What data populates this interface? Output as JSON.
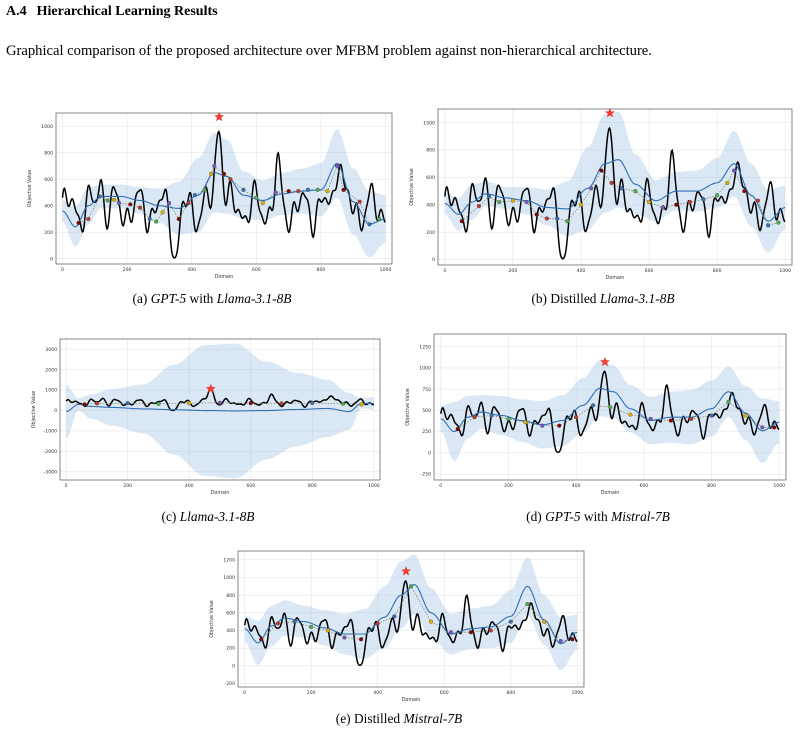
{
  "section": {
    "number": "A.4",
    "title": "Hierarchical Learning Results"
  },
  "intro": "Graphical comparison of the proposed architecture over MFBM problem against non-hierarchical architecture.",
  "chart_data": [
    {
      "type": "line",
      "caption": [
        "(a) ",
        "GPT-5",
        " with ",
        "Llama-3.1-8B"
      ],
      "xlabel": "Domain",
      "ylabel": "Objective Value",
      "xlim": [
        -20,
        1020
      ],
      "ylim": [
        -40,
        1100
      ],
      "xticks": [
        0,
        200,
        400,
        600,
        800,
        1000
      ],
      "yticks": [
        0,
        200,
        400,
        600,
        800,
        1000
      ],
      "grid": true,
      "best": {
        "x": 485,
        "y": 1070
      },
      "gp_mean": [
        [
          0,
          360
        ],
        [
          40,
          240
        ],
        [
          80,
          400
        ],
        [
          120,
          470
        ],
        [
          180,
          470
        ],
        [
          240,
          440
        ],
        [
          300,
          400
        ],
        [
          360,
          380
        ],
        [
          420,
          480
        ],
        [
          470,
          650
        ],
        [
          510,
          620
        ],
        [
          560,
          480
        ],
        [
          620,
          440
        ],
        [
          680,
          490
        ],
        [
          740,
          510
        ],
        [
          800,
          520
        ],
        [
          850,
          720
        ],
        [
          900,
          430
        ],
        [
          950,
          260
        ],
        [
          1000,
          300
        ]
      ],
      "gp_band": [
        [
          0,
          80
        ],
        [
          40,
          150
        ],
        [
          80,
          140
        ],
        [
          120,
          90
        ],
        [
          180,
          90
        ],
        [
          240,
          100
        ],
        [
          300,
          130
        ],
        [
          360,
          200
        ],
        [
          420,
          280
        ],
        [
          470,
          300
        ],
        [
          510,
          280
        ],
        [
          560,
          180
        ],
        [
          620,
          150
        ],
        [
          680,
          160
        ],
        [
          740,
          170
        ],
        [
          800,
          200
        ],
        [
          850,
          260
        ],
        [
          900,
          250
        ],
        [
          950,
          250
        ],
        [
          1000,
          180
        ]
      ],
      "samples": [
        [
          50,
          270
        ],
        [
          80,
          300
        ],
        [
          115,
          470
        ],
        [
          140,
          440
        ],
        [
          160,
          445
        ],
        [
          175,
          420
        ],
        [
          210,
          410
        ],
        [
          240,
          385
        ],
        [
          270,
          300
        ],
        [
          290,
          280
        ],
        [
          310,
          350
        ],
        [
          330,
          420
        ],
        [
          360,
          300
        ],
        [
          390,
          420
        ],
        [
          410,
          480
        ],
        [
          440,
          520
        ],
        [
          460,
          640
        ],
        [
          470,
          700
        ],
        [
          500,
          640
        ],
        [
          520,
          600
        ],
        [
          560,
          520
        ],
        [
          600,
          460
        ],
        [
          620,
          420
        ],
        [
          660,
          500
        ],
        [
          700,
          510
        ],
        [
          730,
          510
        ],
        [
          760,
          520
        ],
        [
          790,
          520
        ],
        [
          820,
          510
        ],
        [
          850,
          700
        ],
        [
          870,
          520
        ],
        [
          920,
          430
        ],
        [
          950,
          260
        ],
        [
          980,
          300
        ]
      ]
    },
    {
      "type": "line",
      "caption": [
        "(b) Distilled ",
        "Llama-3.1-8B"
      ],
      "xlabel": "Domain",
      "ylabel": "Objective Value",
      "xlim": [
        -20,
        1020
      ],
      "ylim": [
        -40,
        1100
      ],
      "xticks": [
        0,
        200,
        400,
        600,
        800,
        1000
      ],
      "yticks": [
        0,
        200,
        400,
        600,
        800,
        1000
      ],
      "grid": true,
      "best": {
        "x": 485,
        "y": 1070
      },
      "gp_mean": [
        [
          0,
          410
        ],
        [
          40,
          330
        ],
        [
          80,
          420
        ],
        [
          120,
          480
        ],
        [
          180,
          450
        ],
        [
          240,
          430
        ],
        [
          300,
          380
        ],
        [
          360,
          370
        ],
        [
          420,
          520
        ],
        [
          470,
          700
        ],
        [
          510,
          730
        ],
        [
          560,
          550
        ],
        [
          620,
          430
        ],
        [
          680,
          500
        ],
        [
          740,
          500
        ],
        [
          800,
          560
        ],
        [
          850,
          700
        ],
        [
          900,
          470
        ],
        [
          950,
          280
        ],
        [
          1000,
          380
        ]
      ],
      "gp_band": [
        [
          0,
          80
        ],
        [
          40,
          120
        ],
        [
          80,
          130
        ],
        [
          120,
          90
        ],
        [
          180,
          80
        ],
        [
          240,
          100
        ],
        [
          300,
          130
        ],
        [
          360,
          200
        ],
        [
          420,
          300
        ],
        [
          470,
          360
        ],
        [
          510,
          350
        ],
        [
          560,
          220
        ],
        [
          620,
          150
        ],
        [
          680,
          140
        ],
        [
          740,
          150
        ],
        [
          800,
          180
        ],
        [
          850,
          240
        ],
        [
          900,
          230
        ],
        [
          950,
          230
        ],
        [
          1000,
          160
        ]
      ],
      "samples": [
        [
          50,
          280
        ],
        [
          100,
          390
        ],
        [
          130,
          460
        ],
        [
          160,
          420
        ],
        [
          200,
          430
        ],
        [
          240,
          420
        ],
        [
          270,
          330
        ],
        [
          300,
          300
        ],
        [
          330,
          300
        ],
        [
          360,
          280
        ],
        [
          400,
          400
        ],
        [
          430,
          520
        ],
        [
          460,
          650
        ],
        [
          490,
          560
        ],
        [
          520,
          520
        ],
        [
          560,
          500
        ],
        [
          600,
          420
        ],
        [
          640,
          380
        ],
        [
          680,
          400
        ],
        [
          720,
          420
        ],
        [
          760,
          440
        ],
        [
          800,
          470
        ],
        [
          830,
          560
        ],
        [
          850,
          650
        ],
        [
          880,
          500
        ],
        [
          920,
          430
        ],
        [
          950,
          250
        ],
        [
          980,
          270
        ]
      ]
    },
    {
      "type": "line",
      "caption": [
        "(c) ",
        "Llama-3.1-8B"
      ],
      "xlabel": "Domain",
      "ylabel": "Objective Value",
      "xlim": [
        -20,
        1020
      ],
      "ylim": [
        -3400,
        3500
      ],
      "xticks": [
        0,
        200,
        400,
        600,
        800,
        1000
      ],
      "yticks": [
        -3000,
        -2000,
        -1000,
        0,
        1000,
        2000,
        3000
      ],
      "grid": true,
      "best": {
        "x": 470,
        "y": 1060
      },
      "gp_mean": [
        [
          0,
          -50
        ],
        [
          40,
          300
        ],
        [
          80,
          200
        ],
        [
          150,
          150
        ],
        [
          250,
          80
        ],
        [
          350,
          40
        ],
        [
          450,
          0
        ],
        [
          550,
          -20
        ],
        [
          650,
          0
        ],
        [
          750,
          50
        ],
        [
          850,
          100
        ],
        [
          920,
          -50
        ],
        [
          960,
          350
        ],
        [
          1000,
          350
        ]
      ],
      "gp_band": [
        [
          0,
          1300
        ],
        [
          40,
          300
        ],
        [
          80,
          600
        ],
        [
          150,
          900
        ],
        [
          250,
          1200
        ],
        [
          350,
          2200
        ],
        [
          450,
          3200
        ],
        [
          550,
          3300
        ],
        [
          650,
          2400
        ],
        [
          750,
          1800
        ],
        [
          850,
          1400
        ],
        [
          920,
          900
        ],
        [
          960,
          250
        ],
        [
          1000,
          300
        ]
      ],
      "samples": [
        [
          60,
          300
        ],
        [
          100,
          350
        ],
        [
          200,
          360
        ],
        [
          300,
          330
        ],
        [
          400,
          360
        ],
        [
          500,
          380
        ],
        [
          600,
          360
        ],
        [
          700,
          350
        ],
        [
          800,
          370
        ],
        [
          900,
          330
        ],
        [
          960,
          300
        ]
      ]
    },
    {
      "type": "line",
      "caption": [
        "(d) ",
        "GPT-5",
        " with ",
        "Mistral-7B"
      ],
      "xlabel": "Domain",
      "ylabel": "Objective Value",
      "xlim": [
        -20,
        1020
      ],
      "ylim": [
        -320,
        1400
      ],
      "xticks": [
        0,
        200,
        400,
        600,
        800,
        1000
      ],
      "yticks": [
        -250,
        0,
        250,
        500,
        750,
        1000,
        1250
      ],
      "grid": true,
      "best": {
        "x": 485,
        "y": 1070
      },
      "gp_mean": [
        [
          0,
          400
        ],
        [
          40,
          250
        ],
        [
          80,
          420
        ],
        [
          120,
          480
        ],
        [
          180,
          440
        ],
        [
          240,
          380
        ],
        [
          300,
          330
        ],
        [
          360,
          380
        ],
        [
          420,
          560
        ],
        [
          470,
          760
        ],
        [
          510,
          720
        ],
        [
          560,
          520
        ],
        [
          620,
          380
        ],
        [
          680,
          420
        ],
        [
          740,
          420
        ],
        [
          800,
          520
        ],
        [
          850,
          720
        ],
        [
          900,
          470
        ],
        [
          950,
          260
        ],
        [
          1000,
          360
        ]
      ],
      "gp_band": [
        [
          0,
          150
        ],
        [
          40,
          350
        ],
        [
          80,
          250
        ],
        [
          120,
          200
        ],
        [
          180,
          230
        ],
        [
          240,
          250
        ],
        [
          300,
          280
        ],
        [
          360,
          300
        ],
        [
          420,
          320
        ],
        [
          470,
          330
        ],
        [
          510,
          310
        ],
        [
          560,
          280
        ],
        [
          620,
          280
        ],
        [
          680,
          300
        ],
        [
          740,
          320
        ],
        [
          800,
          330
        ],
        [
          850,
          300
        ],
        [
          900,
          320
        ],
        [
          950,
          380
        ],
        [
          1000,
          250
        ]
      ],
      "samples": [
        [
          50,
          280
        ],
        [
          100,
          420
        ],
        [
          150,
          440
        ],
        [
          200,
          400
        ],
        [
          250,
          360
        ],
        [
          300,
          320
        ],
        [
          350,
          320
        ],
        [
          400,
          420
        ],
        [
          450,
          560
        ],
        [
          500,
          540
        ],
        [
          560,
          450
        ],
        [
          620,
          400
        ],
        [
          680,
          380
        ],
        [
          740,
          400
        ],
        [
          800,
          440
        ],
        [
          850,
          600
        ],
        [
          900,
          440
        ],
        [
          950,
          300
        ],
        [
          985,
          300
        ]
      ]
    },
    {
      "type": "line",
      "caption": [
        "(e) Distilled ",
        "Mistral-7B"
      ],
      "xlabel": "Domain",
      "ylabel": "Objective Value",
      "xlim": [
        -20,
        1020
      ],
      "ylim": [
        -240,
        1300
      ],
      "xticks": [
        0,
        200,
        400,
        600,
        800,
        1000
      ],
      "yticks": [
        -200,
        0,
        200,
        400,
        600,
        800,
        1000,
        1200
      ],
      "grid": true,
      "best": {
        "x": 485,
        "y": 1070
      },
      "gp_mean": [
        [
          0,
          420
        ],
        [
          40,
          260
        ],
        [
          80,
          450
        ],
        [
          120,
          540
        ],
        [
          180,
          500
        ],
        [
          240,
          430
        ],
        [
          300,
          360
        ],
        [
          360,
          360
        ],
        [
          420,
          550
        ],
        [
          470,
          800
        ],
        [
          510,
          920
        ],
        [
          560,
          600
        ],
        [
          620,
          360
        ],
        [
          680,
          420
        ],
        [
          740,
          440
        ],
        [
          800,
          560
        ],
        [
          850,
          900
        ],
        [
          900,
          520
        ],
        [
          950,
          250
        ],
        [
          1000,
          380
        ]
      ],
      "gp_band": [
        [
          0,
          150
        ],
        [
          40,
          250
        ],
        [
          80,
          230
        ],
        [
          120,
          200
        ],
        [
          180,
          180
        ],
        [
          240,
          200
        ],
        [
          300,
          230
        ],
        [
          360,
          280
        ],
        [
          420,
          350
        ],
        [
          470,
          380
        ],
        [
          510,
          340
        ],
        [
          560,
          280
        ],
        [
          620,
          230
        ],
        [
          680,
          230
        ],
        [
          740,
          240
        ],
        [
          800,
          300
        ],
        [
          850,
          330
        ],
        [
          900,
          280
        ],
        [
          950,
          300
        ],
        [
          1000,
          200
        ]
      ],
      "samples": [
        [
          50,
          300
        ],
        [
          100,
          480
        ],
        [
          150,
          500
        ],
        [
          200,
          440
        ],
        [
          250,
          400
        ],
        [
          300,
          320
        ],
        [
          350,
          300
        ],
        [
          400,
          480
        ],
        [
          450,
          560
        ],
        [
          500,
          900
        ],
        [
          560,
          500
        ],
        [
          620,
          380
        ],
        [
          680,
          380
        ],
        [
          740,
          400
        ],
        [
          800,
          500
        ],
        [
          850,
          700
        ],
        [
          900,
          500
        ],
        [
          950,
          280
        ],
        [
          985,
          300
        ]
      ]
    }
  ]
}
